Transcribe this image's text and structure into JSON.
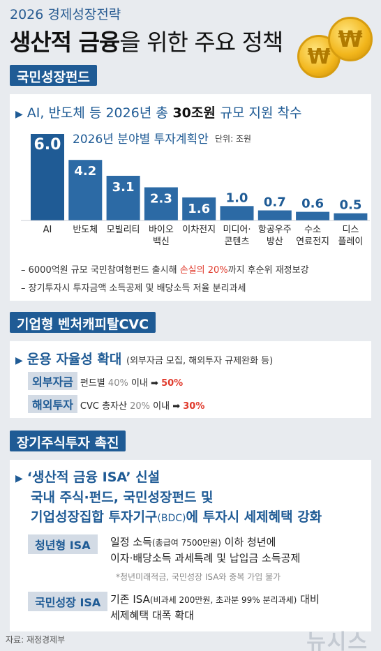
{
  "header": {
    "subtitle": "2026 경제성장전략",
    "title_bold": "생산적 금융",
    "title_light": "을 위한 주요 정책",
    "coin_symbol": "₩"
  },
  "section1": {
    "tag": "국민성장펀드",
    "headline_prefix": "AI, 반도체 등 2026년 총",
    "headline_amount": "30조원",
    "headline_suffix": "규모 지원 착수",
    "notes": [
      {
        "pre": "– 6000억원 규모 국민참여형펀드 출시해",
        "red": "손실의 20%",
        "post": "까지 후순위 재정보강"
      },
      {
        "pre": "– 장기투자시 투자금액 소득공제 및 배당소득 저율 분리과세",
        "red": "",
        "post": ""
      }
    ]
  },
  "chart_data": {
    "type": "bar",
    "title": "2026년 분야별 투자계획안",
    "unit_label": "단위: 조원",
    "categories": [
      "AI",
      "반도체",
      "모빌리티",
      "바이오\n백신",
      "이차전지",
      "미디어·\n콘텐츠",
      "항공우주\n방산",
      "수소\n연료전지",
      "디스\n플레이"
    ],
    "values": [
      6.0,
      4.2,
      3.1,
      2.3,
      1.6,
      1.0,
      0.7,
      0.6,
      0.5
    ],
    "value_labels": [
      "6.0",
      "4.2",
      "3.1",
      "2.3",
      "1.6",
      "1.0",
      "0.7",
      "0.6",
      "0.5"
    ],
    "ylim": [
      0,
      6.0
    ],
    "bar_color_first": "#1f5b95",
    "bar_color": "#2c6aa5"
  },
  "section2": {
    "tag": "기업형 벤처캐피탈CVC",
    "headline": "운용 자율성 확대",
    "headline_note": "(외부자금 모집, 해외투자 규제완화 등)",
    "rows": [
      {
        "label": "외부자금",
        "pre": "펀드별",
        "gray": "40%",
        "mid": "이내 ➡",
        "red": "50%"
      },
      {
        "label": "해외투자",
        "pre": "CVC 총자산",
        "gray": "20%",
        "mid": "이내 ➡",
        "red": "30%"
      }
    ]
  },
  "section3": {
    "tag": "장기주식투자 촉진",
    "headline": "‘생산적 금융 ISA’ 신설",
    "line1": "국내 주식·펀드, 국민성장펀드 및",
    "line2a": "기업성장집합 투자기구",
    "line2b": "(BDC)",
    "line2c": "에 투자시 세제혜택 강화",
    "isa": [
      {
        "label": "청년형 ISA",
        "desc1a": "일정 소득",
        "desc1b": "(총급여 7500만원)",
        "desc1c": " 이하 청년에",
        "desc2": "이자·배당소득 과세특례 및 납입금 소득공제",
        "note": "*청년미래적금, 국민성장 ISA와 중복 가입 불가"
      },
      {
        "label": "국민성장 ISA",
        "desc1a": "기존 ISA",
        "desc1b": "(비과세 200만원, 초과분 99% 분리과세)",
        "desc1c": " 대비",
        "desc2": "세제혜택 대폭 확대",
        "note": ""
      }
    ]
  },
  "footer": {
    "source": "자료: 재정경제부",
    "logo": "뉴시스"
  }
}
